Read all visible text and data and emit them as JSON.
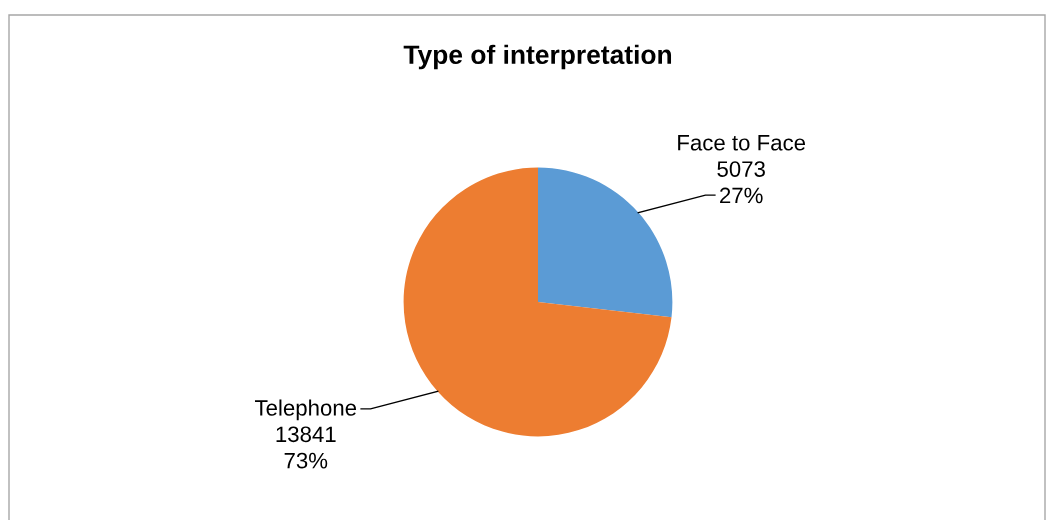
{
  "chart_data": {
    "type": "pie",
    "title": "Type of interpretation",
    "categories": [
      "Face to Face",
      "Telephone"
    ],
    "values": [
      5073,
      13841
    ],
    "colors": [
      "#5b9bd5",
      "#ed7d31"
    ],
    "value_labels": [
      "5073\n27%",
      "13841\n73%"
    ]
  }
}
